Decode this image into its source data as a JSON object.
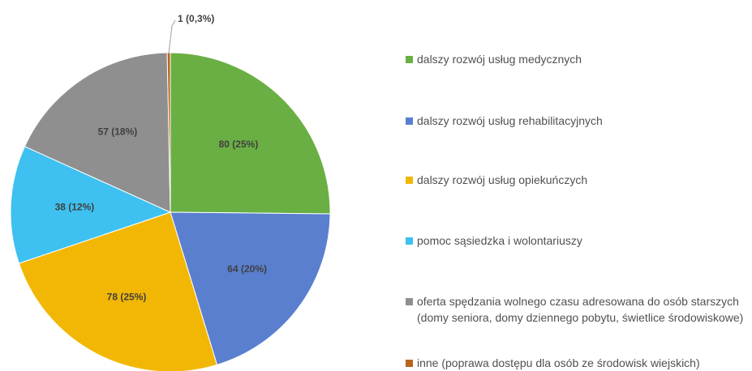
{
  "chart_data": {
    "type": "pie",
    "categories": [
      "dalszy rozwój usług medycznych",
      "dalszy rozwój usług rehabilitacyjnych",
      "dalszy rozwój usług opiekuńczych",
      "pomoc sąsiedzka i wolontariuszy",
      "oferta spędzania wolnego czasu adresowana do osób starszych (domy seniora, domy dziennego pobytu, świetlice środowiskowe)",
      "inne (poprawa dostępu dla osób ze środowisk wiejskich)"
    ],
    "values": [
      80,
      64,
      78,
      38,
      57,
      1
    ],
    "value_labels": [
      "80 (25%)",
      "64 (20%)",
      "78 (25%)",
      "38 (12%)",
      "57 (18%)",
      "1 (0,3%)"
    ],
    "colors": [
      "#6aaf44",
      "#5a7fcf",
      "#f2b705",
      "#3ec1f0",
      "#8f8f8f",
      "#b8651f"
    ]
  }
}
